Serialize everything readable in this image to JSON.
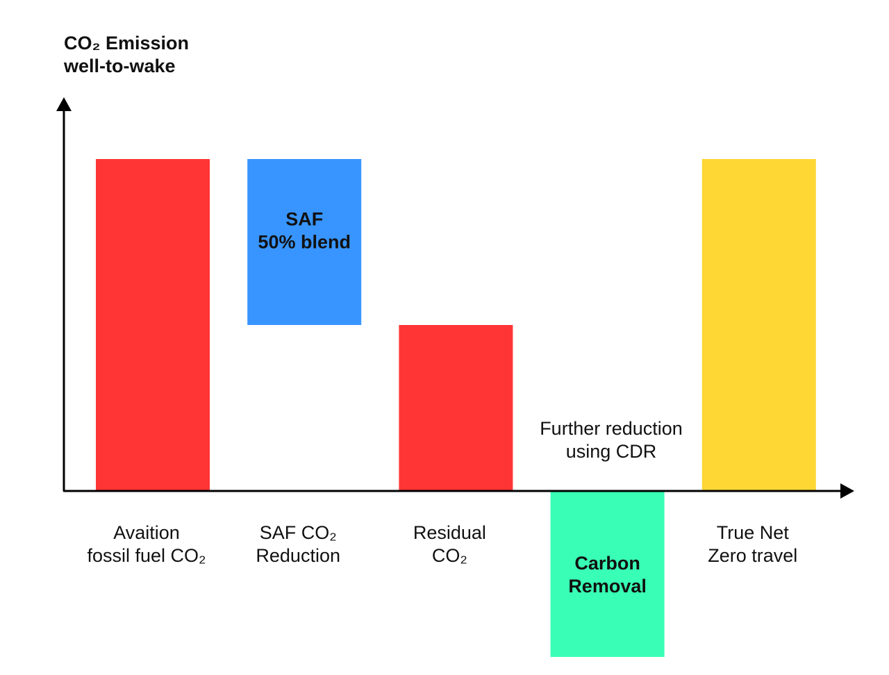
{
  "chart_data": {
    "type": "bar",
    "subtype": "waterfall",
    "ylabel": [
      "CO₂ Emission",
      "well-to-wake"
    ],
    "categories": [
      [
        "Avaition",
        "fossil fuel CO₂"
      ],
      [
        "SAF CO₂",
        "Reduction"
      ],
      [
        "Residual",
        "CO₂"
      ],
      [],
      [
        "True Net",
        "Zero travel"
      ]
    ],
    "bars": [
      {
        "start": 0,
        "end": 100,
        "color": "#ff3535",
        "label": []
      },
      {
        "start": 50,
        "end": 100,
        "color": "#3895ff",
        "label": [
          "SAF",
          "50% blend"
        ]
      },
      {
        "start": 0,
        "end": 50,
        "color": "#ff3535",
        "label": []
      },
      {
        "start": 0,
        "end": -50,
        "color": "#38ffb5",
        "label": [
          "Carbon",
          "Removal"
        ]
      },
      {
        "start": 0,
        "end": 100,
        "color": "#ffd735",
        "label": []
      }
    ],
    "annotation": [
      "Further reduction",
      "using CDR"
    ],
    "ylim": [
      -50,
      100
    ],
    "axis_color": "#000000",
    "grid": false,
    "legend": "none"
  }
}
